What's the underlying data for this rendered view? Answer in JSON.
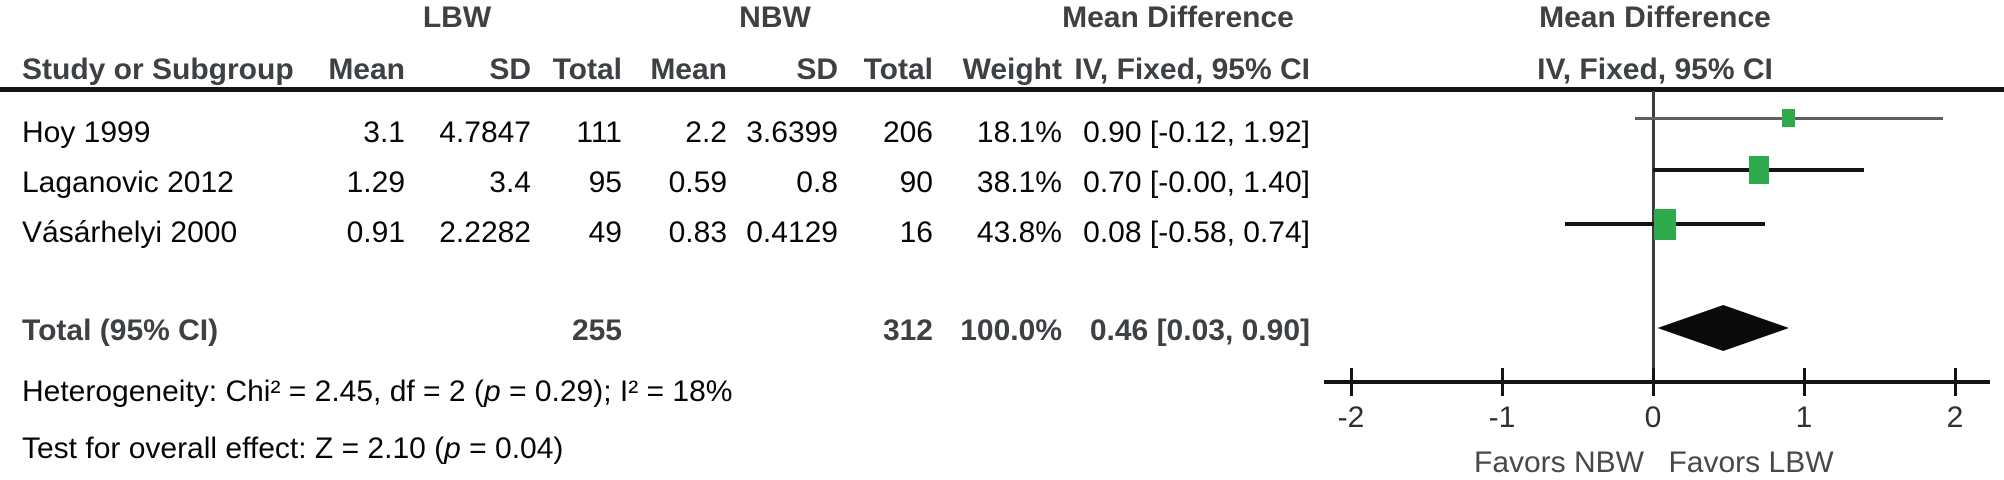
{
  "figure": {
    "group_headers": {
      "experimental": "LBW",
      "control": "NBW",
      "md_text_col": "Mean Difference",
      "md_plot_col": "Mean Difference"
    },
    "column_headers": {
      "study": "Study or Subgroup",
      "mean_exp": "Mean",
      "sd_exp": "SD",
      "total_exp": "Total",
      "mean_ctrl": "Mean",
      "sd_ctrl": "SD",
      "total_ctrl": "Total",
      "weight": "Weight",
      "ci_text": "IV, Fixed, 95% CI",
      "ci_plot": "IV, Fixed, 95% CI"
    },
    "rows": [
      {
        "study": "Hoy 1999",
        "mean_exp": "3.1",
        "sd_exp": "4.7847",
        "total_exp": "111",
        "mean_ctrl": "2.2",
        "sd_ctrl": "3.6399",
        "total_ctrl": "206",
        "weight": "18.1%",
        "ci": "0.90 [-0.12, 1.92]"
      },
      {
        "study": "Laganovic 2012",
        "mean_exp": "1.29",
        "sd_exp": "3.4",
        "total_exp": "95",
        "mean_ctrl": "0.59",
        "sd_ctrl": "0.8",
        "total_ctrl": "90",
        "weight": "38.1%",
        "ci": "0.70 [-0.00, 1.40]"
      },
      {
        "study": "Vásárhelyi 2000",
        "mean_exp": "0.91",
        "sd_exp": "2.2282",
        "total_exp": "49",
        "mean_ctrl": "0.83",
        "sd_ctrl": "0.4129",
        "total_ctrl": "16",
        "weight": "43.8%",
        "ci": "0.08 [-0.58, 0.74]"
      }
    ],
    "total_row": {
      "label": "Total (95% CI)",
      "total_exp": "255",
      "total_ctrl": "312",
      "weight": "100.0%",
      "ci": "0.46 [0.03, 0.90]"
    },
    "footer": {
      "het_pre": "Heterogeneity: Chi² = 2.45, df = 2 (",
      "het_p": "p",
      "het_post": " = 0.29); I² = 18%",
      "eff_pre": "Test for overall effect: Z = 2.10 (",
      "eff_p": "p",
      "eff_post": " = 0.04)"
    }
  },
  "chart_data": {
    "type": "forest",
    "title": "Mean Difference — IV, Fixed, 95% CI (LBW vs NBW)",
    "studies": [
      {
        "name": "Hoy 1999",
        "md": 0.9,
        "ci_low": -0.12,
        "ci_high": 1.92,
        "weight_pct": 18.1,
        "ci_color": "#5f5f5f"
      },
      {
        "name": "Laganovic 2012",
        "md": 0.7,
        "ci_low": 0.0,
        "ci_high": 1.4,
        "weight_pct": 38.1,
        "ci_color": "#141414"
      },
      {
        "name": "Vásárhelyi 2000",
        "md": 0.08,
        "ci_low": -0.58,
        "ci_high": 0.74,
        "weight_pct": 43.8,
        "ci_color": "#141414"
      }
    ],
    "total": {
      "md": 0.46,
      "ci_low": 0.03,
      "ci_high": 0.9,
      "weight_pct": 100.0
    },
    "totals": {
      "experimental_n": 255,
      "control_n": 312
    },
    "stats": {
      "chi2": 2.45,
      "df": 2,
      "p_heterogeneity": 0.29,
      "i2_pct": 18,
      "z": 2.1,
      "p_overall": 0.04
    },
    "axis": {
      "xlim": [
        -2.18,
        2.23
      ],
      "ticks": [
        -2,
        -1,
        0,
        1,
        2
      ],
      "tick_labels": [
        "-2",
        "-1",
        "0",
        "1",
        "2"
      ],
      "left_label": "Favors NBW",
      "right_label": "Favors LBW",
      "grid": false
    },
    "legend_position": "none",
    "marker_color": "#2EA94C",
    "diamond_color": "#0a0a0a"
  },
  "colors": {
    "header_text": "#3e4144",
    "data_text": "#060606",
    "accent_green": "#2EA94C"
  }
}
